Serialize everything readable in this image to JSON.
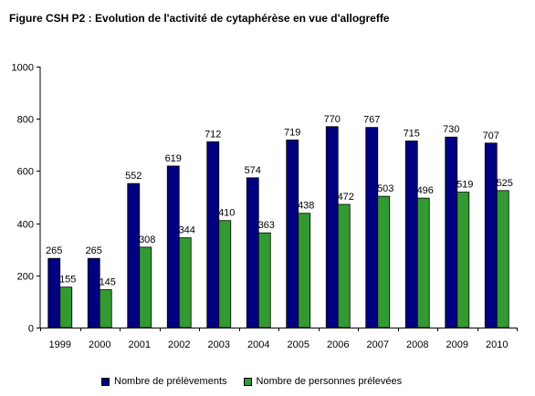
{
  "title": "Figure CSH P2 : Evolution de l'activité de cytaphérèse en vue d'allogreffe",
  "chart_data": {
    "type": "bar",
    "categories": [
      "1999",
      "2000",
      "2001",
      "2002",
      "2003",
      "2004",
      "2005",
      "2006",
      "2007",
      "2008",
      "2009",
      "2010"
    ],
    "series": [
      {
        "name": "Nombre de prélèvements",
        "color": "#000080",
        "values": [
          265,
          265,
          552,
          619,
          712,
          574,
          719,
          770,
          767,
          715,
          730,
          707
        ]
      },
      {
        "name": "Nombre de personnes prélevées",
        "color": "#339933",
        "values": [
          155,
          145,
          308,
          344,
          410,
          363,
          438,
          472,
          503,
          496,
          519,
          525
        ]
      }
    ],
    "ylim": [
      0,
      1000
    ],
    "yticks": [
      0,
      200,
      400,
      600,
      800,
      1000
    ],
    "grid": false,
    "legend_position": "bottom",
    "data_labels": true
  }
}
